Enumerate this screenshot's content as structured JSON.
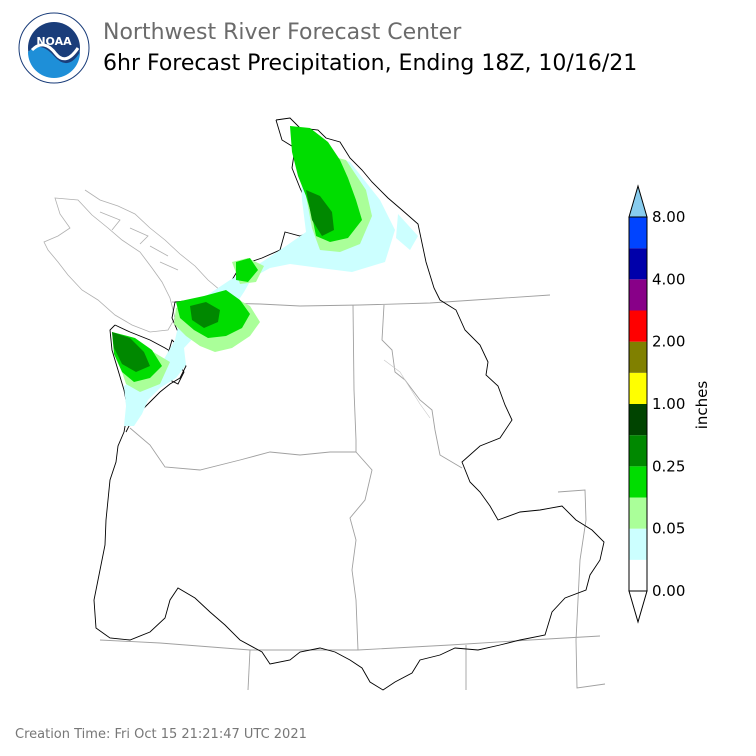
{
  "header": {
    "organization": "Northwest River Forecast Center",
    "product": "6hr Forecast Precipitation, Ending 18Z, 10/16/21"
  },
  "logo": {
    "text": "NOAA",
    "ring_text": "NATIONAL OCEANIC AND ATMOSPHERIC ADMINISTRATION · U.S. DEPARTMENT OF COMMERCE",
    "icon": "noaa-logo-icon"
  },
  "colorbar": {
    "unit": "inches",
    "tick_labels": [
      "0.00",
      "0.05",
      "0.25",
      "1.00",
      "2.00",
      "4.00",
      "8.00"
    ],
    "bins_bottom_to_top": [
      {
        "color": "#ffffff"
      },
      {
        "color": "#ccffff"
      },
      {
        "color": "#aaff99"
      },
      {
        "color": "#00dd00"
      },
      {
        "color": "#008800"
      },
      {
        "color": "#004400"
      },
      {
        "color": "#ffff00"
      },
      {
        "color": "#808000"
      },
      {
        "color": "#ff0000"
      },
      {
        "color": "#880088"
      },
      {
        "color": "#0000aa"
      },
      {
        "color": "#0044ff"
      }
    ],
    "under_color": "#ffffff",
    "over_color": "#88ccee"
  },
  "footer": {
    "creation_time": "Creation Time: Fri Oct 15 21:21:47 UTC 2021"
  }
}
